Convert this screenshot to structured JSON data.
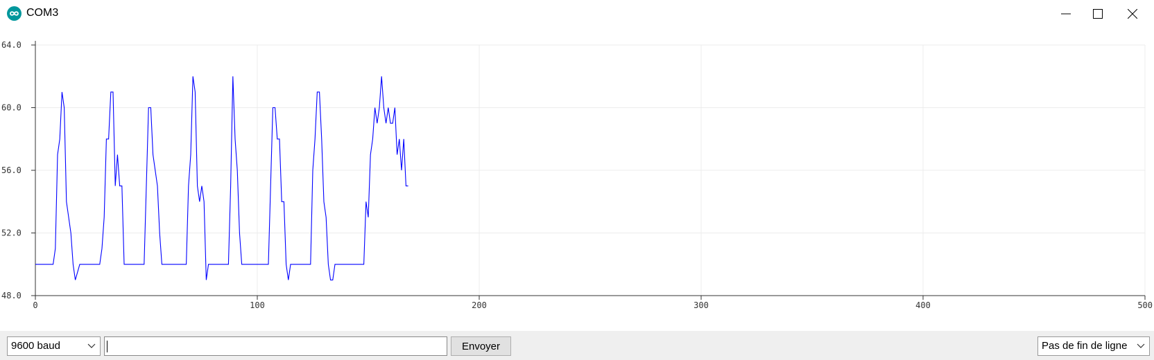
{
  "window": {
    "title": "COM3",
    "icon": "arduino-icon",
    "controls": [
      "minimize-icon",
      "maximize-icon",
      "close-icon"
    ]
  },
  "plotter": {
    "chart_data": {
      "type": "line",
      "xlim": [
        0,
        500
      ],
      "ylim": [
        48,
        64
      ],
      "x_ticks": [
        "0",
        "100",
        "200",
        "300",
        "400",
        "500"
      ],
      "y_ticks": [
        "48.0",
        "52.0",
        "56.0",
        "60.0",
        "64.0"
      ],
      "grid": true,
      "line_color": "#0000ff",
      "series": [
        {
          "x": [
            0,
            4,
            8,
            9,
            10,
            11,
            12,
            13,
            14,
            15,
            16,
            17,
            18,
            20,
            25,
            29,
            30,
            31,
            32,
            33,
            34,
            35,
            36,
            37,
            38,
            39,
            40,
            45,
            49,
            50,
            51,
            52,
            53,
            54,
            55,
            56,
            57,
            58,
            59,
            64,
            68,
            69,
            70,
            71,
            72,
            73,
            74,
            75,
            76,
            77,
            78,
            80,
            85,
            87,
            88,
            89,
            90,
            91,
            92,
            93,
            94,
            95,
            100,
            105,
            106,
            107,
            108,
            109,
            110,
            111,
            112,
            113,
            114,
            115,
            120,
            124,
            125,
            126,
            127,
            128,
            129,
            130,
            131,
            132,
            133,
            134,
            135,
            140,
            148,
            149,
            150,
            151,
            152,
            153,
            154,
            155,
            156,
            157,
            158,
            159,
            160,
            161,
            162,
            163,
            164,
            165,
            166,
            167,
            168
          ],
          "y": [
            50,
            50,
            50,
            51,
            57,
            58,
            61,
            60,
            54,
            53,
            52,
            50,
            49,
            50,
            50,
            50,
            51,
            53,
            58,
            58,
            61,
            61,
            55,
            57,
            55,
            55,
            50,
            50,
            50,
            55,
            60,
            60,
            57,
            56,
            55,
            52,
            50,
            50,
            50,
            50,
            50,
            55,
            57,
            62,
            61,
            55,
            54,
            55,
            54,
            49,
            50,
            50,
            50,
            50,
            55,
            62,
            58,
            56,
            52,
            50,
            50,
            50,
            50,
            50,
            55,
            60,
            60,
            58,
            58,
            54,
            54,
            50,
            49,
            50,
            50,
            50,
            56,
            58,
            61,
            61,
            58,
            54,
            53,
            50,
            49,
            49,
            50,
            50,
            50,
            54,
            53,
            57,
            58,
            60,
            59,
            60,
            62,
            60,
            59,
            60,
            59,
            59,
            60,
            57,
            58,
            56,
            58,
            55,
            55
          ]
        }
      ]
    }
  },
  "bottom": {
    "baud_value": "9600 baud",
    "input_value": "",
    "send_label": "Envoyer",
    "line_ending_value": "Pas de fin de ligne"
  }
}
